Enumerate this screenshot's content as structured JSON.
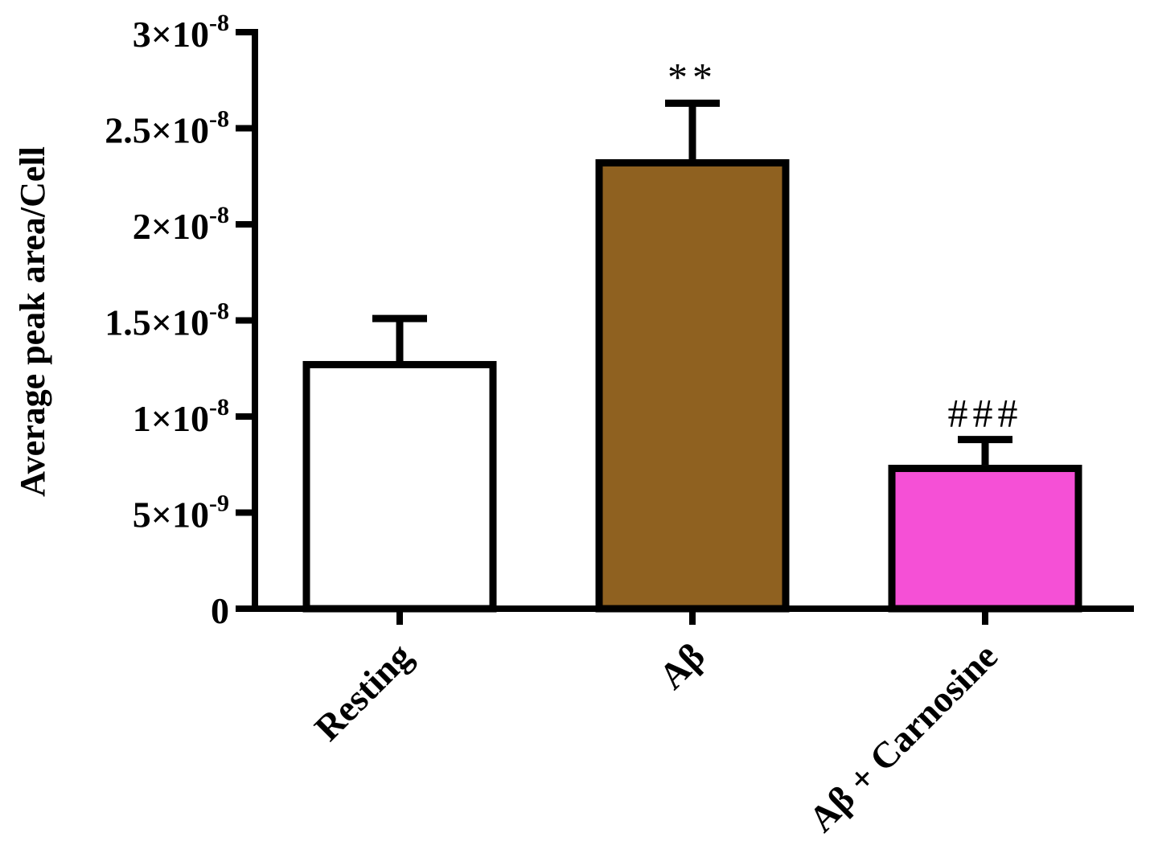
{
  "chart_data": {
    "type": "bar",
    "title": "",
    "ylabel": "Average peak area/Cell",
    "xlabel": "",
    "ylim": [
      0,
      3e-08
    ],
    "grid": false,
    "legend": "none",
    "yticks": [
      {
        "value": 0,
        "mantissa": "0",
        "exponent": ""
      },
      {
        "value": 5e-09,
        "mantissa": "5×10",
        "exponent": "-9"
      },
      {
        "value": 1e-08,
        "mantissa": "1×10",
        "exponent": "-8"
      },
      {
        "value": 1.5e-08,
        "mantissa": "1.5×10",
        "exponent": "-8"
      },
      {
        "value": 2e-08,
        "mantissa": "2×10",
        "exponent": "-8"
      },
      {
        "value": 2.5e-08,
        "mantissa": "2.5×10",
        "exponent": "-8"
      },
      {
        "value": 3e-08,
        "mantissa": "3×10",
        "exponent": "-8"
      }
    ],
    "categories": [
      "Resting",
      "Aβ",
      "Aβ + Carnosine"
    ],
    "values": [
      1.27e-08,
      2.32e-08,
      7.3e-09
    ],
    "errors": [
      2.4e-09,
      3.1e-09,
      1.5e-09
    ],
    "colors": [
      "#ffffff",
      "#8f6120",
      "#f550d6"
    ],
    "annotations": [
      "",
      "**",
      "###"
    ]
  }
}
